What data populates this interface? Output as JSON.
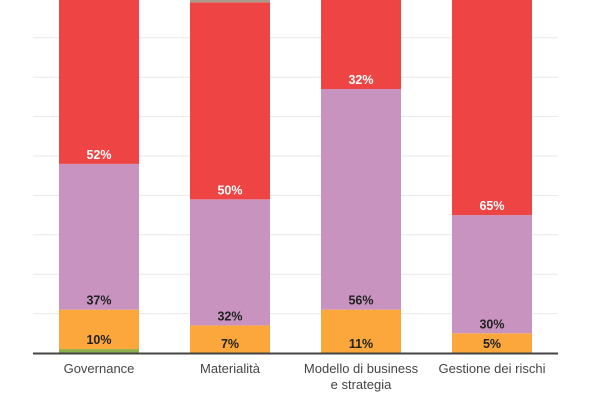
{
  "chart_data": {
    "type": "bar",
    "stacked": true,
    "categories": [
      "Governance",
      "Materialità",
      "Modello di business e strategia",
      "Gestione dei rischi"
    ],
    "category_lines": [
      [
        "Governance"
      ],
      [
        "Materialità"
      ],
      [
        "Modello di business",
        "e strategia"
      ],
      [
        "Gestione dei rischi"
      ]
    ],
    "series": [
      {
        "color": "#8BB04A",
        "values": [
          1,
          0,
          0,
          0
        ],
        "labels": [
          "",
          "",
          "",
          ""
        ]
      },
      {
        "color": "#FBA73B",
        "values": [
          10,
          7,
          11,
          5
        ],
        "labels": [
          "10%",
          "7%",
          "11%",
          "5%"
        ]
      },
      {
        "color": "#C993C0",
        "values": [
          37,
          32,
          56,
          30
        ],
        "labels": [
          "37%",
          "32%",
          "56%",
          "30%"
        ]
      },
      {
        "color": "#EE4444",
        "values": [
          52,
          50,
          32,
          65
        ],
        "labels": [
          "52%",
          "50%",
          "32%",
          "65%"
        ]
      },
      {
        "color": "#A89A8C",
        "values": [
          0,
          11,
          0,
          0
        ],
        "labels": [
          "",
          "",
          "",
          ""
        ]
      }
    ],
    "ylim": [
      0,
      100
    ],
    "grid": true,
    "legend": "none",
    "label_colors": {
      "dark": "#222222",
      "light": "#ffffff"
    }
  }
}
